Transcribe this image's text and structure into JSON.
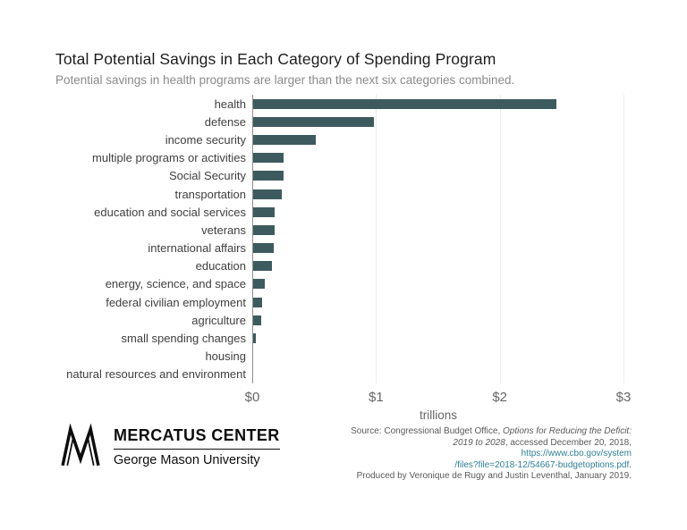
{
  "title": "Total Potential Savings in Each Category of Spending Program",
  "subtitle": "Potential savings in health programs are larger than the next six categories combined.",
  "chart_data": {
    "type": "bar",
    "orientation": "horizontal",
    "title": "Total Potential Savings in Each Category of Spending Program",
    "subtitle": "Potential savings in health programs are larger than the next six categories combined.",
    "categories": [
      "health",
      "defense",
      "income security",
      "multiple programs or activities",
      "Social Security",
      "transportation",
      "education and social services",
      "veterans",
      "international affairs",
      "education",
      "energy, science, and space",
      "federal civilian employment",
      "agriculture",
      "small spending changes",
      "housing",
      "natural resources and environment"
    ],
    "values": [
      2.46,
      0.98,
      0.51,
      0.25,
      0.25,
      0.24,
      0.18,
      0.18,
      0.17,
      0.16,
      0.1,
      0.08,
      0.07,
      0.03,
      0.01,
      0.005
    ],
    "units": "trillions of dollars",
    "xlabel": "trillions",
    "x_ticks": [
      "$0",
      "$1",
      "$2",
      "$3"
    ],
    "xlim": [
      0,
      3
    ],
    "grid": "faint vertical gridlines at $1, $2, $3",
    "bar_color": "#3d5b5e"
  },
  "footer": {
    "logo_title": "MERCATUS CENTER",
    "logo_subtitle": "George Mason University",
    "source": {
      "line1_plain": "Source: Congressional Budget Office, ",
      "line1_italic": "Options for Reducing the Deficit:",
      "line2_italic": "2019 to 2028",
      "line2_plain": ", accessed December 20, 2018, ",
      "line2_link": "https://www.cbo.gov/system",
      "line3_link": "/files?file=2018-12/54667-budgetoptions.pdf",
      "line3_plain": ".",
      "line4_plain": "Produced by Veronique de Rugy and Justin Leventhal, January 2019."
    }
  }
}
